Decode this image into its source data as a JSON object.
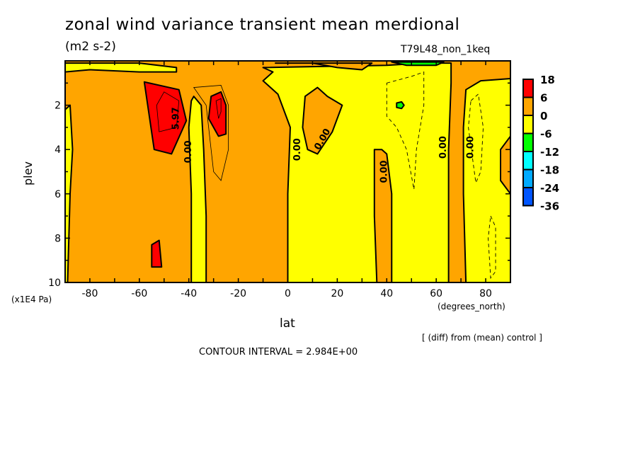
{
  "title": "zonal wind variance transient mean merdional",
  "units": "(m2 s-2)",
  "run_label": "T79L48_non_1keq",
  "footer": {
    "diff_note": "[ (diff) from (mean) control ]",
    "contour_interval": "CONTOUR INTERVAL = 2.984E+00"
  },
  "chart_data": {
    "type": "heatmap",
    "subtype": "filled-contour",
    "xlabel": "lat",
    "xunits": "(degrees_north)",
    "ylabel": "plev",
    "yunits": "(x1E4 Pa)",
    "xlim": [
      -90,
      90
    ],
    "ylim": [
      10,
      0
    ],
    "xticks": [
      "-80",
      "-60",
      "-40",
      "-20",
      "0",
      "20",
      "40",
      "60",
      "80"
    ],
    "xtick_values": [
      -80,
      -60,
      -40,
      -20,
      0,
      20,
      40,
      60,
      80
    ],
    "yticks": [
      "2",
      "4",
      "6",
      "8",
      "10"
    ],
    "ytick_values": [
      2,
      4,
      6,
      8,
      10
    ],
    "legend": {
      "placement": "right",
      "levels": [
        "18",
        "6",
        "0",
        "-6",
        "-12",
        "-18",
        "-24",
        "-36"
      ],
      "colors": [
        "#ff0000",
        "#ffa500",
        "#ffff00",
        "#00ff00",
        "#00ffff",
        "#00aaff",
        "#0055ff"
      ]
    },
    "background_class_color": "#ffa500",
    "regions": [
      {
        "class": "-6-0",
        "color": "#ffff00",
        "points": [
          [
            -90,
            0.1
          ],
          [
            -60,
            0.1
          ],
          [
            -45,
            0.3
          ],
          [
            -45,
            0.5
          ],
          [
            -60,
            0.5
          ],
          [
            -80,
            0.4
          ],
          [
            -90,
            0.5
          ]
        ]
      },
      {
        "class": "-6-0",
        "color": "#ffff00",
        "points": [
          [
            -90,
            2.2
          ],
          [
            -88,
            2.0
          ],
          [
            -87,
            4
          ],
          [
            -88,
            6
          ],
          [
            -89,
            10
          ],
          [
            -90,
            10
          ]
        ]
      },
      {
        "class": "-6-0",
        "color": "#ffff00",
        "points": [
          [
            -38,
            1.6
          ],
          [
            -35,
            2
          ],
          [
            -34,
            4
          ],
          [
            -33,
            7
          ],
          [
            -33,
            10
          ],
          [
            -39,
            10
          ],
          [
            -39,
            6
          ],
          [
            -40,
            3
          ],
          [
            -39,
            1.8
          ]
        ]
      },
      {
        "class": "-6-0",
        "color": "#ffff00",
        "points": [
          [
            -10,
            0.3
          ],
          [
            40,
            0.2
          ],
          [
            55,
            0.1
          ],
          [
            66,
            0.1
          ],
          [
            66,
            1
          ],
          [
            65,
            4
          ],
          [
            65,
            10
          ],
          [
            0,
            10
          ],
          [
            0,
            6
          ],
          [
            1,
            3
          ],
          [
            -4,
            1.5
          ],
          [
            -10,
            0.9
          ],
          [
            -6,
            0.5
          ]
        ]
      },
      {
        "class": "0-6",
        "color": "#ffa500",
        "points": [
          [
            7,
            1.6
          ],
          [
            12,
            1.2
          ],
          [
            16,
            1.6
          ],
          [
            22,
            2
          ],
          [
            18,
            3.2
          ],
          [
            12,
            4.2
          ],
          [
            8,
            4
          ],
          [
            6,
            3
          ]
        ]
      },
      {
        "class": "0-6",
        "color": "#ffa500",
        "points": [
          [
            35,
            4
          ],
          [
            38,
            4
          ],
          [
            40,
            4.2
          ],
          [
            42,
            6
          ],
          [
            42,
            10
          ],
          [
            36,
            10
          ],
          [
            35,
            7
          ]
        ]
      },
      {
        "class": "0-6",
        "color": "#ffa500",
        "points": [
          [
            -5,
            0.1
          ],
          [
            10,
            0.1
          ],
          [
            20,
            0.3
          ],
          [
            30,
            0.4
          ],
          [
            34,
            0.1
          ],
          [
            -5,
            0.1
          ]
        ]
      },
      {
        "class": "-6-0",
        "color": "#ffff00",
        "points": [
          [
            72,
            1.3
          ],
          [
            78,
            0.9
          ],
          [
            90,
            0.8
          ],
          [
            90,
            10
          ],
          [
            72,
            10
          ],
          [
            71,
            6
          ],
          [
            71,
            3
          ]
        ]
      },
      {
        "class": "0-6",
        "color": "#ffa500",
        "points": [
          [
            90,
            3.4
          ],
          [
            86,
            4
          ],
          [
            86,
            5.4
          ],
          [
            90,
            6
          ]
        ]
      },
      {
        "class": "6-18",
        "color": "#ff0000",
        "points": [
          [
            -58,
            0.95
          ],
          [
            -44,
            1.3
          ],
          [
            -41,
            2.7
          ],
          [
            -47,
            4.2
          ],
          [
            -54,
            4.0
          ]
        ]
      },
      {
        "class": "6-18",
        "color": "#ff0000",
        "points": [
          [
            -31,
            1.6
          ],
          [
            -27,
            1.4
          ],
          [
            -25,
            2
          ],
          [
            -25,
            3.3
          ],
          [
            -28,
            3.4
          ],
          [
            -32,
            2.6
          ]
        ]
      },
      {
        "class": "6-18",
        "color": "#ff0000",
        "points": [
          [
            -55,
            8.3
          ],
          [
            -52,
            8.1
          ],
          [
            -51,
            9.3
          ],
          [
            -55,
            9.3
          ]
        ]
      },
      {
        "class": "-12--6",
        "color": "#00ff00",
        "points": [
          [
            44,
            1.9
          ],
          [
            46,
            1.85
          ],
          [
            47,
            2
          ],
          [
            46,
            2.15
          ],
          [
            44,
            2.1
          ]
        ]
      },
      {
        "class": "-12--6",
        "color": "#00ff00",
        "points": [
          [
            42,
            0.05
          ],
          [
            63,
            0.05
          ],
          [
            60,
            0.2
          ],
          [
            48,
            0.2
          ]
        ]
      }
    ],
    "contour_labels": [
      "5.97",
      "0.00",
      "0.00",
      "0.00",
      "0.00",
      "0.00",
      "0.00"
    ]
  }
}
